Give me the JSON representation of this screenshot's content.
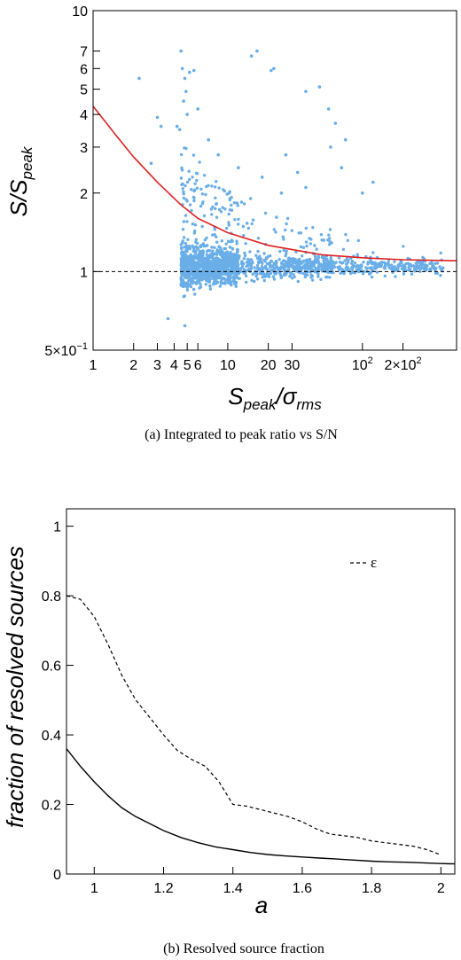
{
  "figure": {
    "caption_a": "(a)  Integrated to peak ratio vs S/N",
    "caption_b": "(b)  Resolved source fraction"
  },
  "chart_data": [
    {
      "type": "scatter",
      "title": "",
      "x_scale": "log",
      "y_scale": "log",
      "xlim": [
        1,
        500
      ],
      "ylim": [
        0.5,
        10
      ],
      "ylabel_main": "S/S",
      "ylabel_sub": "peak",
      "xlabel_main": "S",
      "xlabel_sub": "peak",
      "xlabel_slash": "/σ",
      "xlabel_sub2": "rms",
      "x_ticks": [
        {
          "v": 1,
          "label": "1"
        },
        {
          "v": 2,
          "label": "2"
        },
        {
          "v": 3,
          "label": "3"
        },
        {
          "v": 4,
          "label": "4"
        },
        {
          "v": 5,
          "label": "5"
        },
        {
          "v": 6,
          "label": "6"
        },
        {
          "v": 10,
          "label": "10"
        },
        {
          "v": 20,
          "label": "20"
        },
        {
          "v": 30,
          "label": "30"
        },
        {
          "v": 100,
          "label": "10",
          "sup": "2"
        },
        {
          "v": 200,
          "label": "2×10",
          "sup": "2"
        }
      ],
      "y_ticks": [
        {
          "v": 0.5,
          "label": "5×10",
          "sup": "−1"
        },
        {
          "v": 1,
          "label": "1"
        },
        {
          "v": 2,
          "label": "2"
        },
        {
          "v": 3,
          "label": "3"
        },
        {
          "v": 4,
          "label": "4"
        },
        {
          "v": 5,
          "label": "5"
        },
        {
          "v": 6,
          "label": "6"
        },
        {
          "v": 7,
          "label": "7"
        },
        {
          "v": 10,
          "label": "10"
        }
      ],
      "point_color": "#6aaee8",
      "curve_color": "#e02020",
      "envelope_curve": {
        "x": [
          1,
          1.5,
          2,
          3,
          4.5,
          6,
          10,
          20,
          50,
          100,
          200,
          500
        ],
        "y": [
          4.3,
          3.3,
          2.75,
          2.2,
          1.8,
          1.6,
          1.41,
          1.26,
          1.16,
          1.13,
          1.11,
          1.1
        ]
      },
      "reference_line_y": 1,
      "outlier_points": {
        "x": [
          4.5,
          4.6,
          4.8,
          5.2,
          4.7,
          5.6,
          4.9,
          6,
          5,
          4.4,
          4.2,
          15,
          16.5,
          22,
          21,
          48,
          38,
          56,
          63,
          75,
          58,
          3,
          3.2,
          2.2,
          2.7,
          18,
          27,
          70,
          120,
          38,
          8.5,
          12,
          7.2,
          4.8,
          3.6,
          25,
          33,
          100
        ],
        "y": [
          7,
          6,
          5.5,
          5.8,
          4.5,
          5.9,
          4.9,
          4.2,
          4.0,
          3.5,
          3.6,
          6.7,
          7.0,
          6.0,
          5.9,
          5.1,
          4.9,
          4.2,
          3.7,
          3.2,
          3.0,
          3.9,
          3.6,
          5.5,
          2.6,
          2.3,
          2.8,
          2.5,
          2.2,
          2.1,
          2.8,
          2.5,
          3.2,
          0.62,
          0.66,
          2.0,
          2.4,
          2.0
        ]
      },
      "synthetic_cloud": {
        "n": 1900
      }
    },
    {
      "type": "line",
      "title": "",
      "xlim": [
        0.92,
        2.04
      ],
      "ylim": [
        0,
        1.05
      ],
      "xlabel": "a",
      "ylabel": "fraction of resolved sources",
      "x_ticks": [
        1,
        1.2,
        1.4,
        1.6,
        1.8,
        2
      ],
      "x_tick_labels": [
        "1",
        "1.2",
        "1.4",
        "1.6",
        "1.8",
        "2"
      ],
      "y_ticks": [
        0,
        0.2,
        0.4,
        0.6,
        0.8,
        1
      ],
      "y_tick_labels": [
        "0",
        "0.2",
        "0.4",
        "0.6",
        "0.8",
        "1"
      ],
      "legend": {
        "position": "top-right",
        "entries": [
          {
            "label": "ε",
            "style": "dashed"
          }
        ]
      },
      "series": [
        {
          "name": "ε",
          "style": "dashed",
          "x": [
            0.92,
            0.96,
            1.0,
            1.04,
            1.08,
            1.12,
            1.16,
            1.2,
            1.24,
            1.28,
            1.32,
            1.36,
            1.4,
            1.44,
            1.48,
            1.52,
            1.56,
            1.6,
            1.64,
            1.68,
            1.72,
            1.76,
            1.8,
            1.84,
            1.88,
            1.92,
            1.96,
            2.0
          ],
          "y": [
            0.8,
            0.79,
            0.74,
            0.66,
            0.57,
            0.5,
            0.45,
            0.4,
            0.355,
            0.33,
            0.31,
            0.265,
            0.2,
            0.195,
            0.185,
            0.175,
            0.165,
            0.15,
            0.13,
            0.115,
            0.11,
            0.105,
            0.095,
            0.09,
            0.085,
            0.08,
            0.07,
            0.055
          ]
        },
        {
          "style": "solid",
          "x": [
            0.92,
            0.96,
            1.0,
            1.04,
            1.08,
            1.12,
            1.16,
            1.2,
            1.25,
            1.3,
            1.35,
            1.4,
            1.45,
            1.5,
            1.55,
            1.6,
            1.65,
            1.7,
            1.75,
            1.8,
            1.85,
            1.9,
            1.95,
            2.0,
            2.04
          ],
          "y": [
            0.36,
            0.31,
            0.265,
            0.225,
            0.19,
            0.165,
            0.145,
            0.125,
            0.105,
            0.09,
            0.078,
            0.07,
            0.062,
            0.056,
            0.052,
            0.049,
            0.046,
            0.043,
            0.04,
            0.037,
            0.035,
            0.034,
            0.032,
            0.03,
            0.029
          ]
        }
      ]
    }
  ]
}
